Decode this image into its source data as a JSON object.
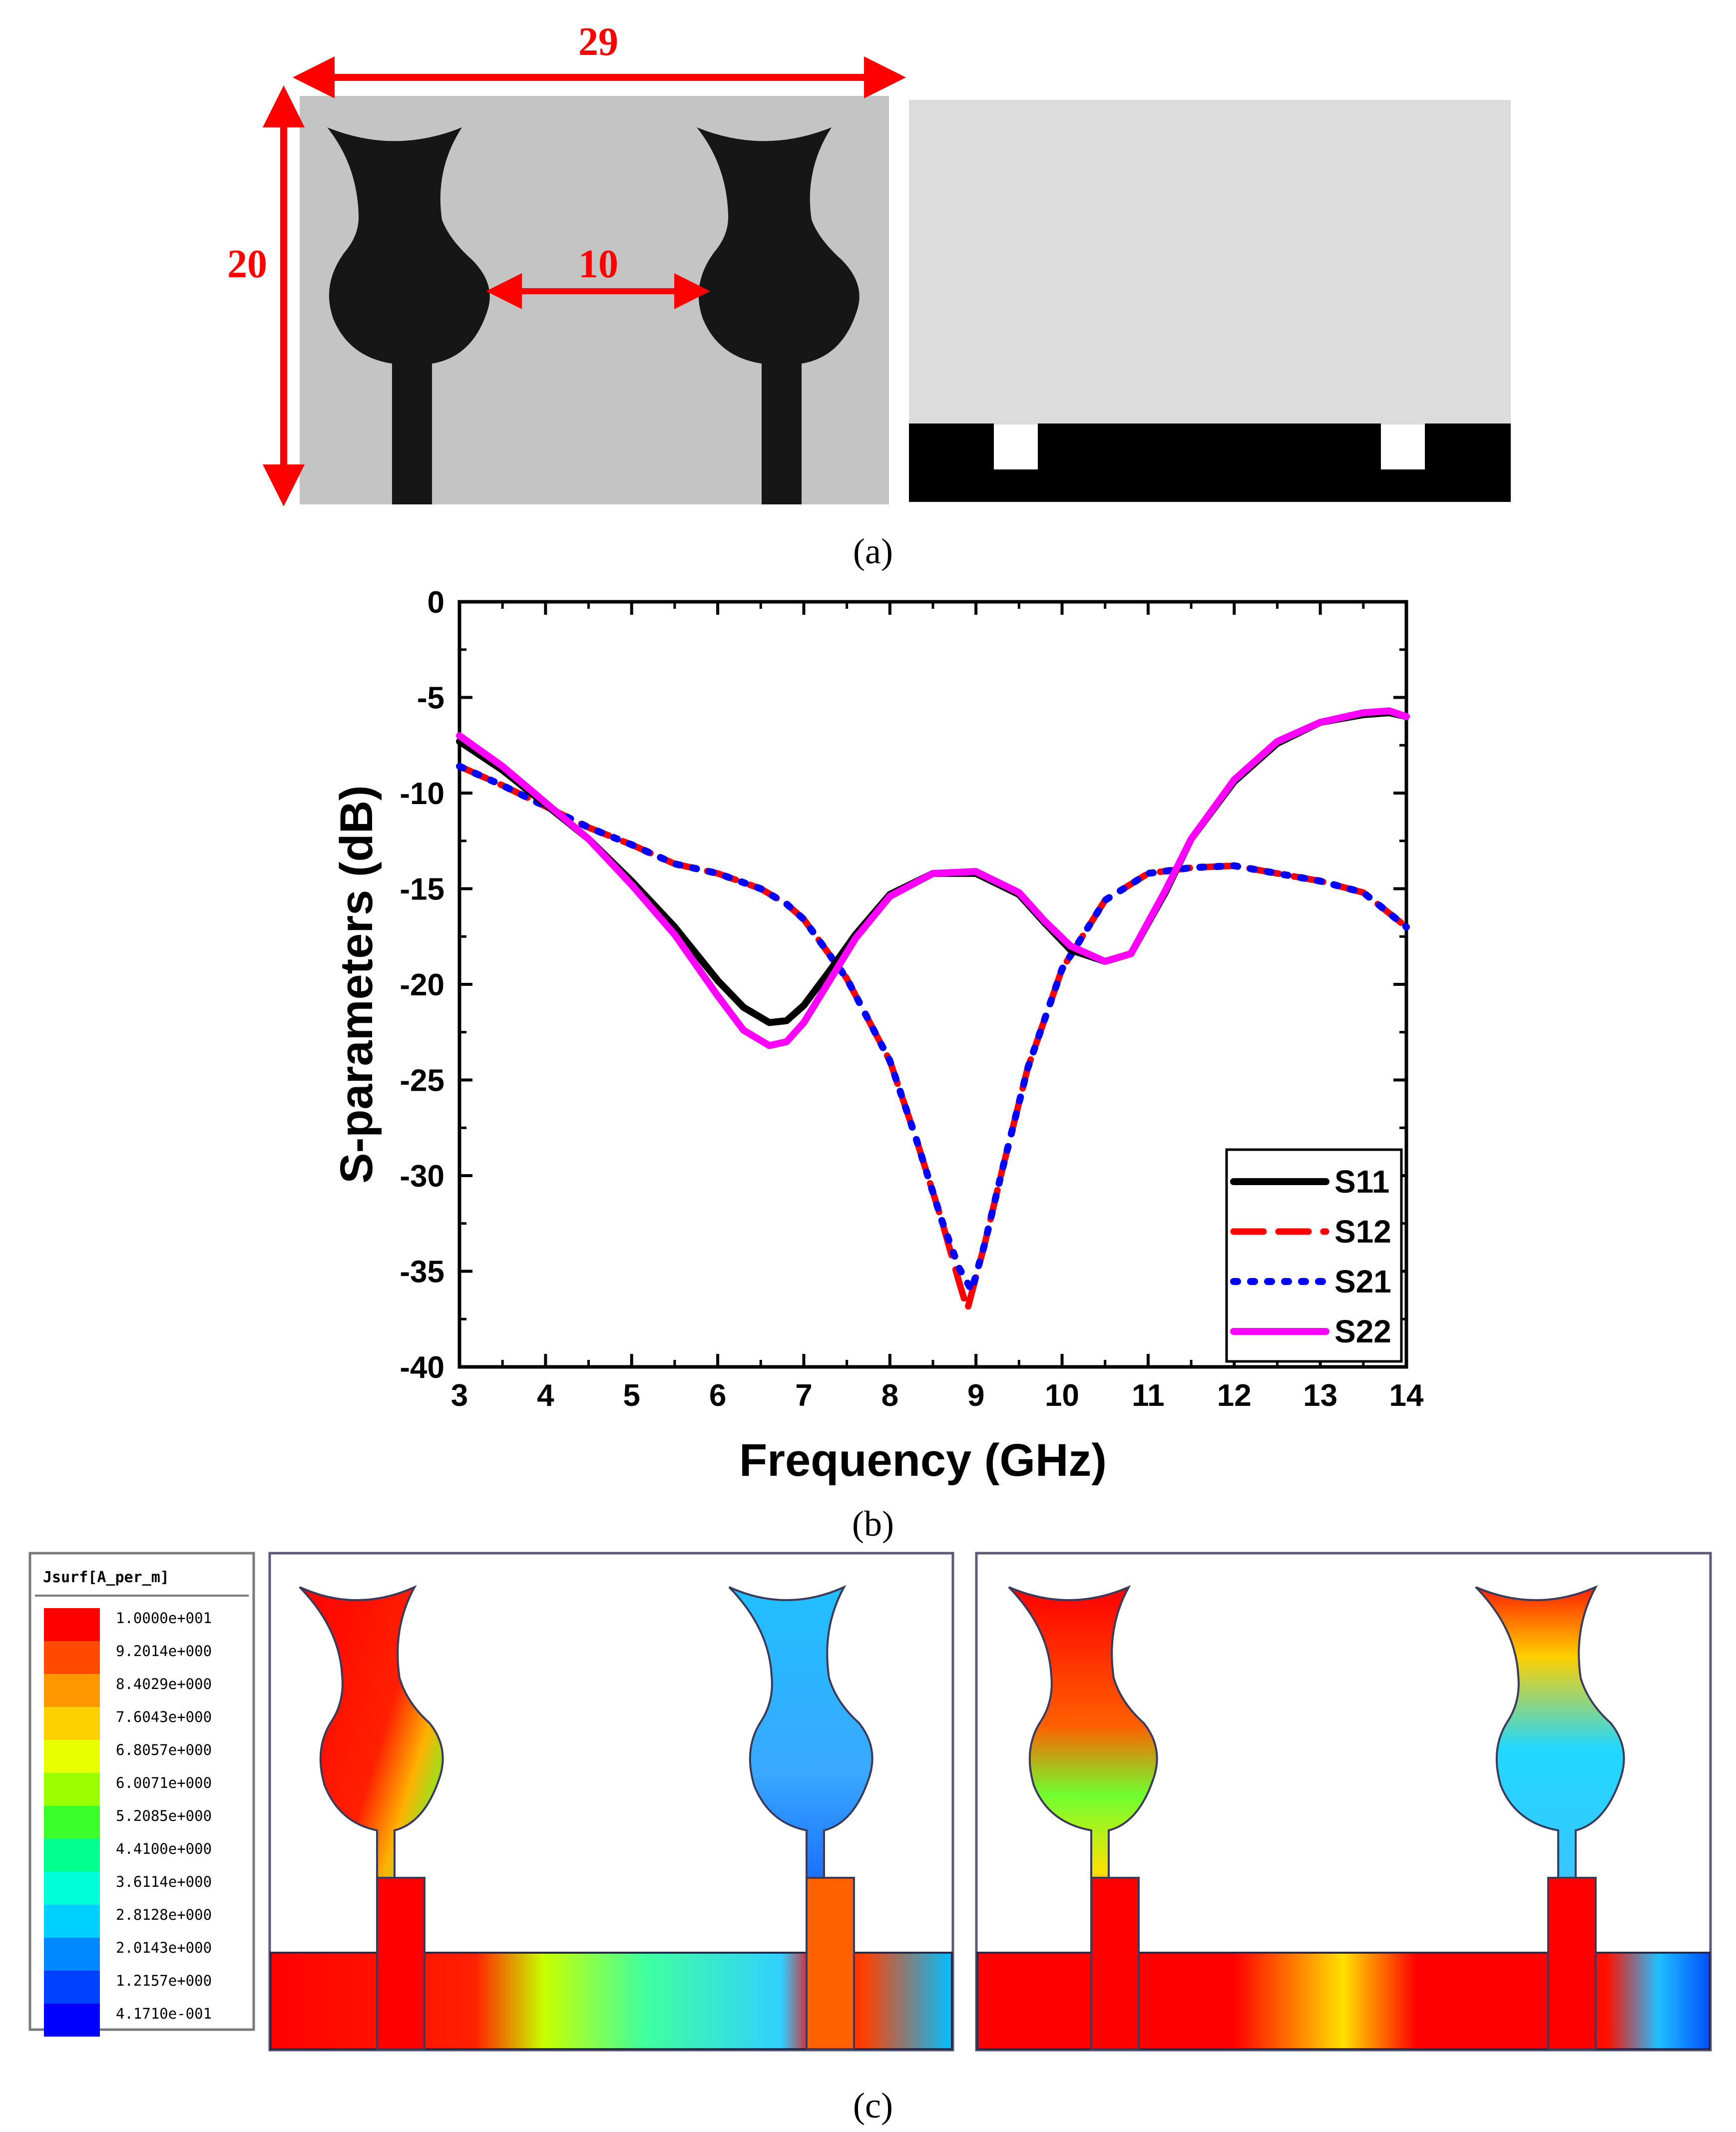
{
  "panel_a": {
    "caption": "(a)",
    "width_label": "29",
    "height_label": "20",
    "spacing_label": "10"
  },
  "panel_b": {
    "caption": "(b)"
  },
  "panel_c": {
    "caption": "(c)",
    "colorbar_title": "Jsurf[A_per_m]",
    "colorbar_values": [
      "1.0000e+001",
      "9.2014e+000",
      "8.4029e+000",
      "7.6043e+000",
      "6.8057e+000",
      "6.0071e+000",
      "5.2085e+000",
      "4.4100e+000",
      "3.6114e+000",
      "2.8128e+000",
      "2.0143e+000",
      "1.2157e+000",
      "4.1710e-001"
    ],
    "colorbar_colors": [
      "#ff0000",
      "#ff4a00",
      "#ff9800",
      "#ffd000",
      "#e8ff00",
      "#9cff00",
      "#3cff2a",
      "#00ff8c",
      "#00ffd8",
      "#00d0ff",
      "#0088ff",
      "#0040ff",
      "#0000ff"
    ]
  },
  "chart_data": {
    "type": "line",
    "title": "",
    "xlabel": "Frequency (GHz)",
    "ylabel": "S-parameters (dB)",
    "xlim": [
      3,
      14
    ],
    "ylim": [
      -40,
      0
    ],
    "xticks": [
      3,
      4,
      5,
      6,
      7,
      8,
      9,
      10,
      11,
      12,
      13,
      14
    ],
    "yticks": [
      0,
      -5,
      -10,
      -15,
      -20,
      -25,
      -30,
      -35,
      -40
    ],
    "legend_position": "bottom-right",
    "series": [
      {
        "name": "S11",
        "color": "#000000",
        "style": "solid",
        "x": [
          3,
          3.5,
          4,
          4.5,
          5,
          5.5,
          6,
          6.3,
          6.6,
          6.8,
          7,
          7.3,
          7.6,
          8,
          8.5,
          9,
          9.5,
          9.8,
          10.1,
          10.5,
          10.8,
          11.2,
          11.5,
          12,
          12.5,
          13,
          13.5,
          13.8,
          14
        ],
        "y": [
          -7.3,
          -8.8,
          -10.6,
          -12.4,
          -14.6,
          -17,
          -19.8,
          -21.2,
          -22,
          -21.9,
          -21.1,
          -19.3,
          -17.4,
          -15.3,
          -14.2,
          -14.2,
          -15.3,
          -16.8,
          -18.2,
          -18.8,
          -18.4,
          -15.2,
          -12.4,
          -9.4,
          -7.4,
          -6.3,
          -5.9,
          -5.8,
          -6
        ]
      },
      {
        "name": "S12",
        "color": "#ff0000",
        "style": "dash",
        "x": [
          3,
          3.5,
          4,
          4.5,
          5,
          5.5,
          6,
          6.5,
          6.8,
          7,
          7.5,
          8,
          8.3,
          8.6,
          8.8,
          8.9,
          9.1,
          9.3,
          9.6,
          10,
          10.5,
          11,
          11.5,
          12,
          12.5,
          13,
          13.5,
          14
        ],
        "y": [
          -8.6,
          -9.6,
          -10.7,
          -11.8,
          -12.7,
          -13.7,
          -14.2,
          -15,
          -15.8,
          -16.6,
          -19.7,
          -24,
          -28,
          -32.3,
          -35.5,
          -37,
          -33.6,
          -29.8,
          -24.4,
          -19.2,
          -15.6,
          -14.2,
          -13.9,
          -13.8,
          -14.2,
          -14.6,
          -15.2,
          -17
        ]
      },
      {
        "name": "S21",
        "color": "#0000ff",
        "style": "dot",
        "x": [
          3,
          3.5,
          4,
          4.5,
          5,
          5.5,
          6,
          6.5,
          6.8,
          7,
          7.5,
          8,
          8.3,
          8.6,
          8.8,
          8.95,
          9.1,
          9.3,
          9.6,
          10,
          10.5,
          11,
          11.5,
          12,
          12.5,
          13,
          13.5,
          14
        ],
        "y": [
          -8.6,
          -9.6,
          -10.7,
          -11.8,
          -12.7,
          -13.7,
          -14.2,
          -15,
          -15.8,
          -16.6,
          -19.7,
          -24,
          -28,
          -32.3,
          -34.8,
          -36,
          -33.6,
          -29.8,
          -24.4,
          -19.2,
          -15.6,
          -14.2,
          -13.9,
          -13.8,
          -14.2,
          -14.6,
          -15.2,
          -17
        ]
      },
      {
        "name": "S22",
        "color": "#ff00ff",
        "style": "solid",
        "x": [
          3,
          3.5,
          4,
          4.5,
          5,
          5.5,
          6,
          6.3,
          6.6,
          6.8,
          7,
          7.3,
          7.6,
          8,
          8.5,
          9,
          9.5,
          9.8,
          10.1,
          10.5,
          10.8,
          11.2,
          11.5,
          12,
          12.5,
          13,
          13.5,
          13.8,
          14
        ],
        "y": [
          -7,
          -8.6,
          -10.5,
          -12.4,
          -14.8,
          -17.4,
          -20.6,
          -22.4,
          -23.2,
          -23,
          -22,
          -19.8,
          -17.6,
          -15.4,
          -14.2,
          -14.1,
          -15.2,
          -16.7,
          -18,
          -18.8,
          -18.4,
          -15.1,
          -12.4,
          -9.3,
          -7.3,
          -6.3,
          -5.8,
          -5.7,
          -6
        ]
      }
    ]
  }
}
